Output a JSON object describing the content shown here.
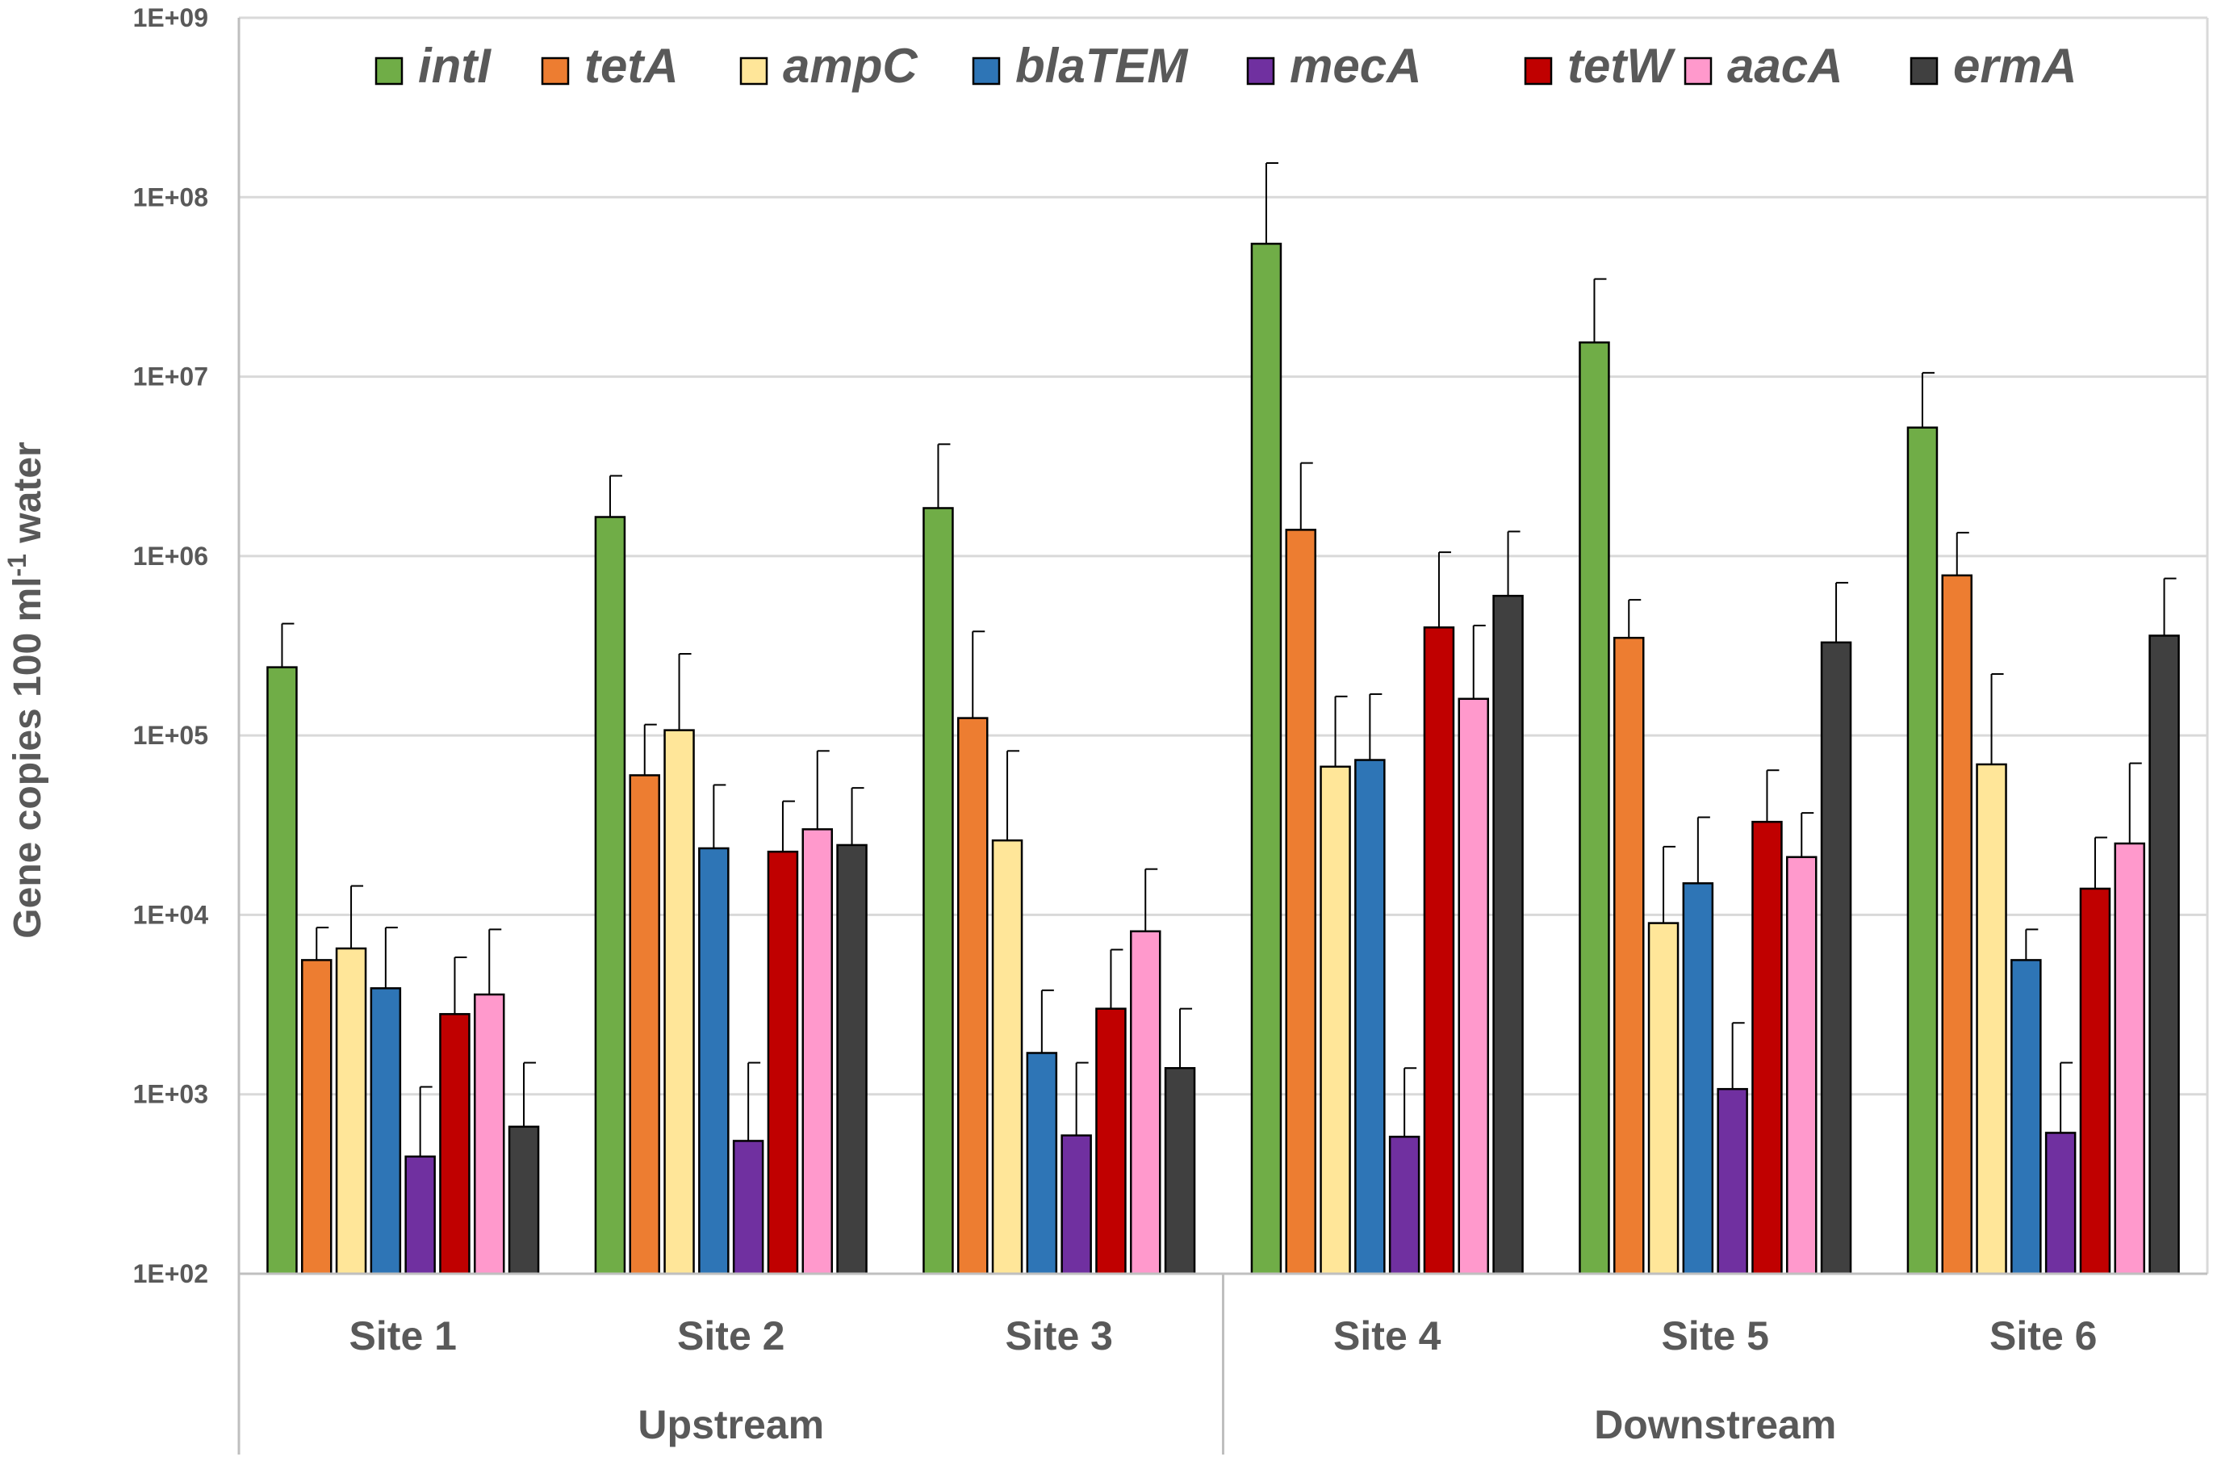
{
  "chart_data": {
    "type": "bar",
    "yscale": "log",
    "title": "",
    "xlabel": "",
    "ylabel": {
      "main": "Gene copies 100 ml",
      "superscript": "-1",
      "suffix": " water"
    },
    "ylim": [
      100,
      1000000000
    ],
    "yticks": [
      {
        "value": 100,
        "label": "1E+02"
      },
      {
        "value": 1000,
        "label": "1E+03"
      },
      {
        "value": 10000,
        "label": "1E+04"
      },
      {
        "value": 100000,
        "label": "1E+05"
      },
      {
        "value": 1000000,
        "label": "1E+06"
      },
      {
        "value": 10000000,
        "label": "1E+07"
      },
      {
        "value": 100000000,
        "label": "1E+08"
      },
      {
        "value": 1000000000,
        "label": "1E+09"
      }
    ],
    "grid": true,
    "legend_position": "top",
    "categories": [
      "Site 1",
      "Site 2",
      "Site 3",
      "Site 4",
      "Site 5",
      "Site 6"
    ],
    "groups": [
      {
        "label": "Upstream",
        "categories": [
          "Site 1",
          "Site 2",
          "Site 3"
        ]
      },
      {
        "label": "Downstream",
        "categories": [
          "Site 4",
          "Site 5",
          "Site 6"
        ]
      }
    ],
    "series": [
      {
        "name": "intI",
        "color": "#70ad47",
        "values": [
          240000,
          1650000,
          1850000,
          55000000,
          15500000,
          5200000
        ],
        "errors_upper": [
          420000,
          2800000,
          4200000,
          155000000,
          35000000,
          10500000
        ]
      },
      {
        "name": "tetA",
        "color": "#ed7d31",
        "values": [
          5600,
          60000,
          125000,
          1400000,
          350000,
          780000
        ],
        "errors_upper": [
          8500,
          115000,
          380000,
          3300000,
          570000,
          1350000
        ]
      },
      {
        "name": "ampC",
        "color": "#ffe699",
        "values": [
          6500,
          107000,
          26000,
          67000,
          9000,
          69000
        ],
        "errors_upper": [
          14500,
          285000,
          82000,
          165000,
          24000,
          220000
        ]
      },
      {
        "name": "blaTEM",
        "color": "#2e75b6",
        "values": [
          3900,
          23500,
          1700,
          73000,
          15000,
          5600
        ],
        "errors_upper": [
          8500,
          53000,
          3800,
          170000,
          35000,
          8300
        ]
      },
      {
        "name": "mecA",
        "color": "#7030a0",
        "values": [
          450,
          550,
          590,
          580,
          1070,
          610
        ],
        "errors_upper": [
          1100,
          1500,
          1500,
          1400,
          2500,
          1500
        ]
      },
      {
        "name": "tetW",
        "color": "#c00000",
        "values": [
          2800,
          22500,
          3000,
          400000,
          33000,
          14000
        ],
        "errors_upper": [
          5800,
          43000,
          6400,
          1050000,
          64000,
          27000
        ]
      },
      {
        "name": "aacA",
        "color": "#ff99cc",
        "values": [
          3600,
          30000,
          8100,
          160000,
          21000,
          25000
        ],
        "errors_upper": [
          8300,
          82000,
          18000,
          410000,
          37000,
          70000
        ]
      },
      {
        "name": "ermA",
        "color": "#404040",
        "values": [
          660,
          24500,
          1400,
          600000,
          330000,
          360000
        ],
        "errors_upper": [
          1500,
          51000,
          3000,
          1370000,
          710000,
          750000
        ]
      }
    ]
  }
}
